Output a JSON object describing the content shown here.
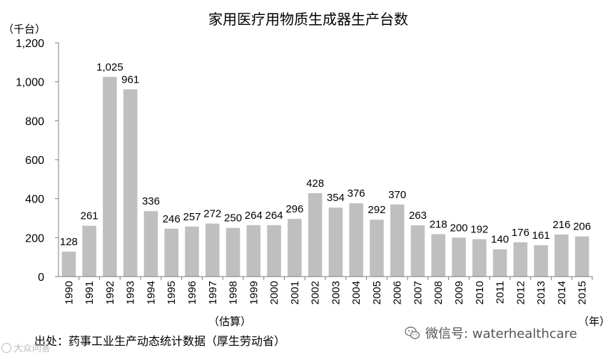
{
  "chart_data": {
    "type": "bar",
    "title": "家用医疗用物质生成器生产台数",
    "yunit": "（千台）",
    "xunit": "（年）",
    "estimate_note": "（估算）",
    "categories": [
      "1990",
      "1991",
      "1992",
      "1993",
      "1994",
      "1995",
      "1996",
      "1997",
      "1998",
      "1999",
      "2000",
      "2001",
      "2002",
      "2003",
      "2004",
      "2005",
      "2006",
      "2007",
      "2008",
      "2009",
      "2010",
      "2011",
      "2012",
      "2013",
      "2014",
      "2015"
    ],
    "values": [
      128,
      261,
      1025,
      961,
      336,
      246,
      257,
      272,
      250,
      264,
      264,
      296,
      428,
      354,
      376,
      292,
      370,
      263,
      218,
      200,
      192,
      140,
      176,
      161,
      216,
      206
    ],
    "value_labels": [
      "128",
      "261",
      "1,025",
      "961",
      "336",
      "246",
      "257",
      "272",
      "250",
      "264",
      "264",
      "296",
      "428",
      "354",
      "376",
      "292",
      "370",
      "263",
      "218",
      "200",
      "192",
      "140",
      "176",
      "161",
      "216",
      "206"
    ],
    "ylim": [
      0,
      1200
    ],
    "yticks": [
      0,
      200,
      400,
      600,
      800,
      1000,
      1200
    ],
    "ytick_labels": [
      "0",
      "200",
      "400",
      "600",
      "800",
      "1,000",
      "1,200"
    ],
    "bar_color": "#bfbfbf",
    "axis_color": "#7f7f7f",
    "grid": false,
    "legend": "none"
  },
  "source": "出处：药事工业生产动态统计数据（厚生劳动省）",
  "wechat": {
    "label": "微信号: waterhealthcare",
    "icon": "wechat-icon"
  },
  "watermark": {
    "text": "大众问答",
    "icon": "watermark-logo-icon"
  }
}
